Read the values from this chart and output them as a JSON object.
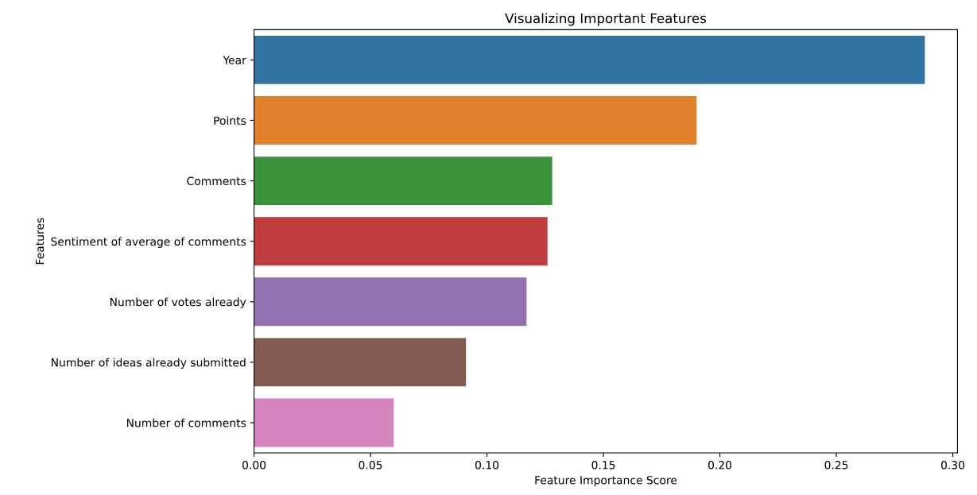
{
  "chart_data": {
    "type": "bar",
    "orientation": "horizontal",
    "title": "Visualizing Important Features",
    "xlabel": "Feature Importance Score",
    "ylabel": "Features",
    "categories": [
      "Year",
      "Points",
      "Comments",
      "Sentiment of average of comments",
      "Number of votes already",
      "Number of ideas already submitted",
      "Number of comments"
    ],
    "values": [
      0.288,
      0.19,
      0.128,
      0.126,
      0.117,
      0.091,
      0.06
    ],
    "colors": [
      "#3274a1",
      "#e1812c",
      "#3a923a",
      "#c03d3e",
      "#9372b2",
      "#845b53",
      "#d684bd"
    ],
    "xlim": [
      0,
      0.302
    ],
    "xticks": [
      {
        "value": 0,
        "label": "0.00"
      },
      {
        "value": 0.05,
        "label": "0.05"
      },
      {
        "value": 0.1,
        "label": "0.10"
      },
      {
        "value": 0.15,
        "label": "0.15"
      },
      {
        "value": 0.2,
        "label": "0.20"
      },
      {
        "value": 0.25,
        "label": "0.25"
      },
      {
        "value": 0.3,
        "label": "0.30"
      }
    ],
    "grid": false
  }
}
